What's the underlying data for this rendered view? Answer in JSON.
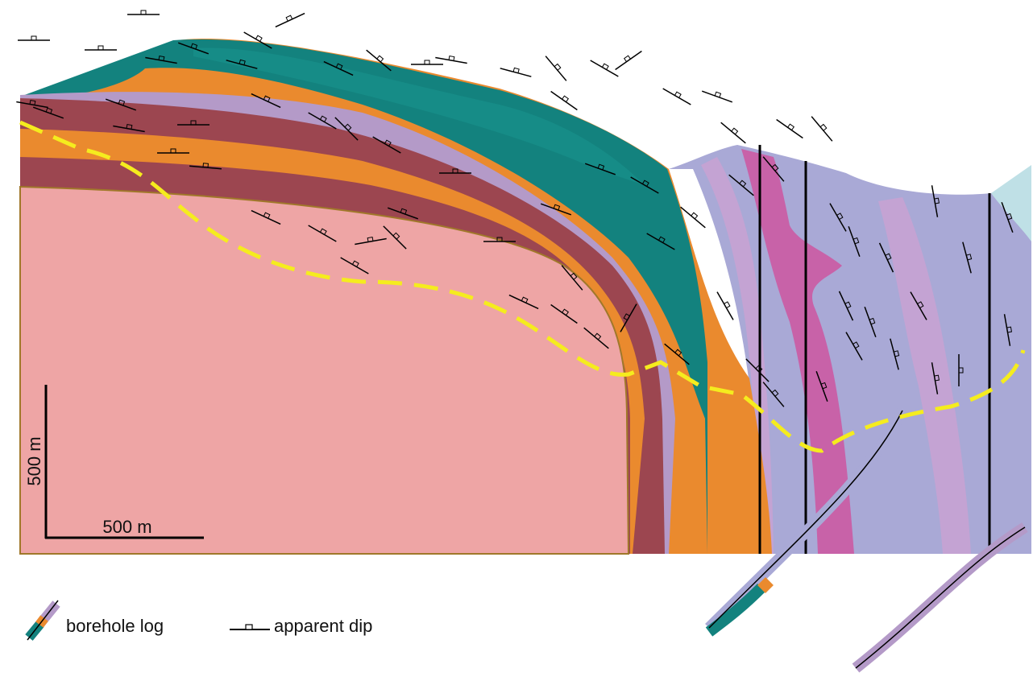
{
  "scale_bar": {
    "vertical_label": "500 m",
    "horizontal_label": "500 m"
  },
  "legend": {
    "items": [
      {
        "label": "borehole log"
      },
      {
        "label": "apparent dip"
      }
    ]
  }
}
